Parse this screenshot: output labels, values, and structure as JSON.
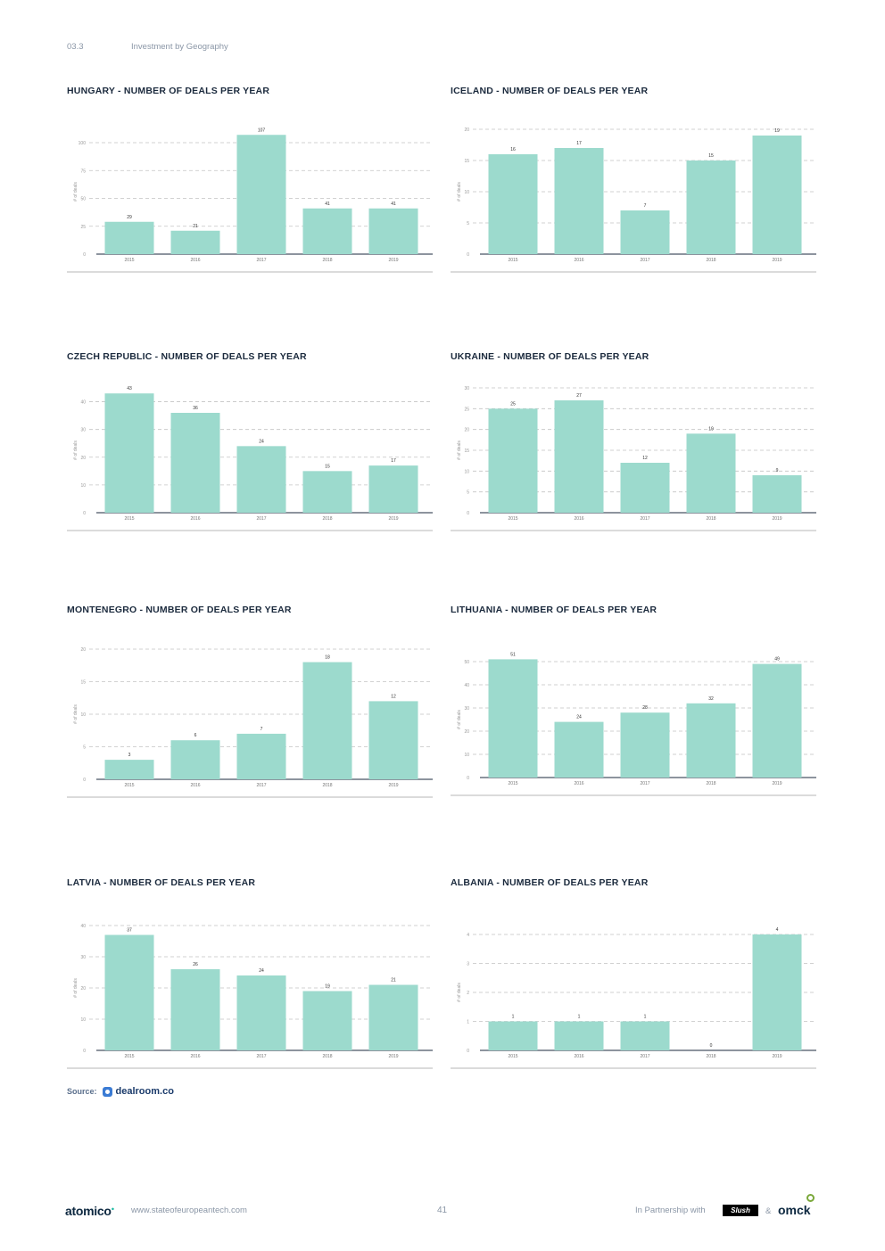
{
  "header": {
    "section": "03.3",
    "title": "Investment by Geography"
  },
  "colors": {
    "bar": "#9cdacd",
    "grid": "#c4c4c4",
    "axis": "#1b2a3d"
  },
  "chart_data": [
    {
      "type": "bar",
      "title": "HUNGARY - NUMBER OF DEALS PER YEAR",
      "ylabel": "# of deals",
      "categories": [
        "2015",
        "2016",
        "2017",
        "2018",
        "2019"
      ],
      "values": [
        29,
        21,
        107,
        41,
        41
      ],
      "yticks": [
        0,
        25,
        50,
        75,
        100
      ],
      "ylim": [
        0,
        112
      ]
    },
    {
      "type": "bar",
      "title": "ICELAND - NUMBER OF DEALS PER YEAR",
      "ylabel": "# of deals",
      "categories": [
        "2015",
        "2016",
        "2017",
        "2018",
        "2019"
      ],
      "values": [
        16,
        17,
        7,
        15,
        19
      ],
      "yticks": [
        0,
        5,
        10,
        15,
        20
      ],
      "ylim": [
        0,
        20
      ]
    },
    {
      "type": "bar",
      "title": "CZECH REPUBLIC - NUMBER OF DEALS PER YEAR",
      "ylabel": "# of deals",
      "categories": [
        "2015",
        "2016",
        "2017",
        "2018",
        "2019"
      ],
      "values": [
        43,
        36,
        24,
        15,
        17
      ],
      "yticks": [
        0,
        10,
        20,
        30,
        40
      ],
      "ylim": [
        0,
        45
      ]
    },
    {
      "type": "bar",
      "title": "UKRAINE - NUMBER OF DEALS PER YEAR",
      "ylabel": "# of deals",
      "categories": [
        "2015",
        "2016",
        "2017",
        "2018",
        "2019"
      ],
      "values": [
        25,
        27,
        12,
        19,
        9
      ],
      "yticks": [
        0,
        5,
        10,
        15,
        20,
        25,
        30
      ],
      "ylim": [
        0,
        30
      ]
    },
    {
      "type": "bar",
      "title": "MONTENEGRO - NUMBER OF DEALS PER YEAR",
      "ylabel": "# of deals",
      "categories": [
        "2015",
        "2016",
        "2017",
        "2018",
        "2019"
      ],
      "values": [
        3,
        6,
        7,
        18,
        12
      ],
      "yticks": [
        0,
        5,
        10,
        15,
        20
      ],
      "ylim": [
        0,
        20
      ]
    },
    {
      "type": "bar",
      "title": "LITHUANIA - NUMBER OF DEALS PER YEAR",
      "ylabel": "# of deals",
      "categories": [
        "2015",
        "2016",
        "2017",
        "2018",
        "2019"
      ],
      "values": [
        51,
        24,
        28,
        32,
        49
      ],
      "yticks": [
        0,
        10,
        20,
        30,
        40,
        50
      ],
      "ylim": [
        0,
        50
      ]
    },
    {
      "type": "bar",
      "title": "LATVIA - NUMBER OF DEALS PER YEAR",
      "ylabel": "# of deals",
      "categories": [
        "2015",
        "2016",
        "2017",
        "2018",
        "2019"
      ],
      "values": [
        37,
        26,
        24,
        19,
        21
      ],
      "yticks": [
        0,
        10,
        20,
        30,
        40
      ],
      "ylim": [
        0,
        40
      ]
    },
    {
      "type": "bar",
      "title": "ALBANIA - NUMBER OF DEALS PER YEAR",
      "ylabel": "# of deals",
      "categories": [
        "2015",
        "2016",
        "2017",
        "2018",
        "2019"
      ],
      "values": [
        1,
        1,
        1,
        0,
        4
      ],
      "yticks": [
        0,
        1,
        2,
        3,
        4
      ],
      "ylim": [
        0,
        4
      ]
    }
  ],
  "source": {
    "label": "Source:",
    "name": "dealroom.co"
  },
  "footer": {
    "brand": "atomico",
    "url": "www.stateofeuropeantech.com",
    "page": "41",
    "partner_text": "In Partnership with",
    "partner1": "Slush",
    "amp": "&",
    "partner2": "omck"
  }
}
